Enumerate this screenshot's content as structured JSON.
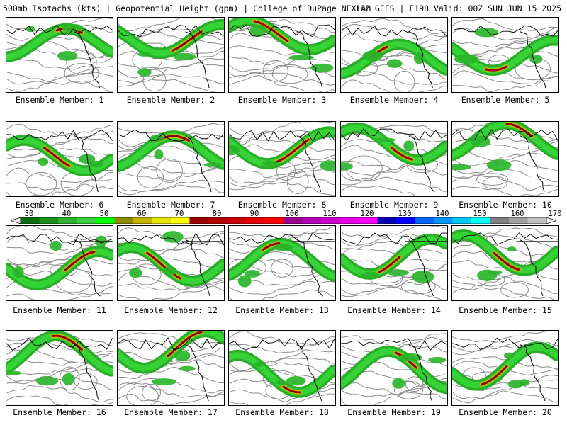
{
  "header": {
    "left": "500mb Isotachs (kts) | Geopotential Height (gpm) | College of DuPage NEXLAB",
    "right": "18Z GEFS | F198 Valid: 00Z SUN JUN 15 2025"
  },
  "colorbar": {
    "labels": [
      "30",
      "40",
      "50",
      "60",
      "70",
      "80",
      "90",
      "100",
      "110",
      "120",
      "130",
      "140",
      "150",
      "160",
      "170"
    ],
    "colors": [
      "#0a6e0a",
      "#1a8f1a",
      "#2fb22f",
      "#3ecf3e",
      "#00ff00",
      "#8c8c00",
      "#c8b400",
      "#e6e600",
      "#ffff00",
      "#9a0000",
      "#b40000",
      "#cd0000",
      "#e60000",
      "#ff0000",
      "#9c0090",
      "#b400b4",
      "#cd00cd",
      "#e600e6",
      "#ff00ff",
      "#0000b4",
      "#0000ff",
      "#0064ff",
      "#0096ff",
      "#00c8ff",
      "#00ffff",
      "#808080",
      "#a0a0a0",
      "#c0c0c0"
    ]
  },
  "panels": [
    {
      "caption": "Ensemble Member: 1"
    },
    {
      "caption": "Ensemble Member: 2"
    },
    {
      "caption": "Ensemble Member: 3"
    },
    {
      "caption": "Ensemble Member: 4"
    },
    {
      "caption": "Ensemble Member: 5"
    },
    {
      "caption": "Ensemble Member: 6"
    },
    {
      "caption": "Ensemble Member: 7"
    },
    {
      "caption": "Ensemble Member: 8"
    },
    {
      "caption": "Ensemble Member: 9"
    },
    {
      "caption": "Ensemble Member: 10"
    },
    {
      "caption": "Ensemble Member: 11"
    },
    {
      "caption": "Ensemble Member: 12"
    },
    {
      "caption": "Ensemble Member: 13"
    },
    {
      "caption": "Ensemble Member: 14"
    },
    {
      "caption": "Ensemble Member: 15"
    },
    {
      "caption": "Ensemble Member: 16"
    },
    {
      "caption": "Ensemble Member: 17"
    },
    {
      "caption": "Ensemble Member: 18"
    },
    {
      "caption": "Ensemble Member: 19"
    },
    {
      "caption": "Ensemble Member: 20"
    }
  ]
}
